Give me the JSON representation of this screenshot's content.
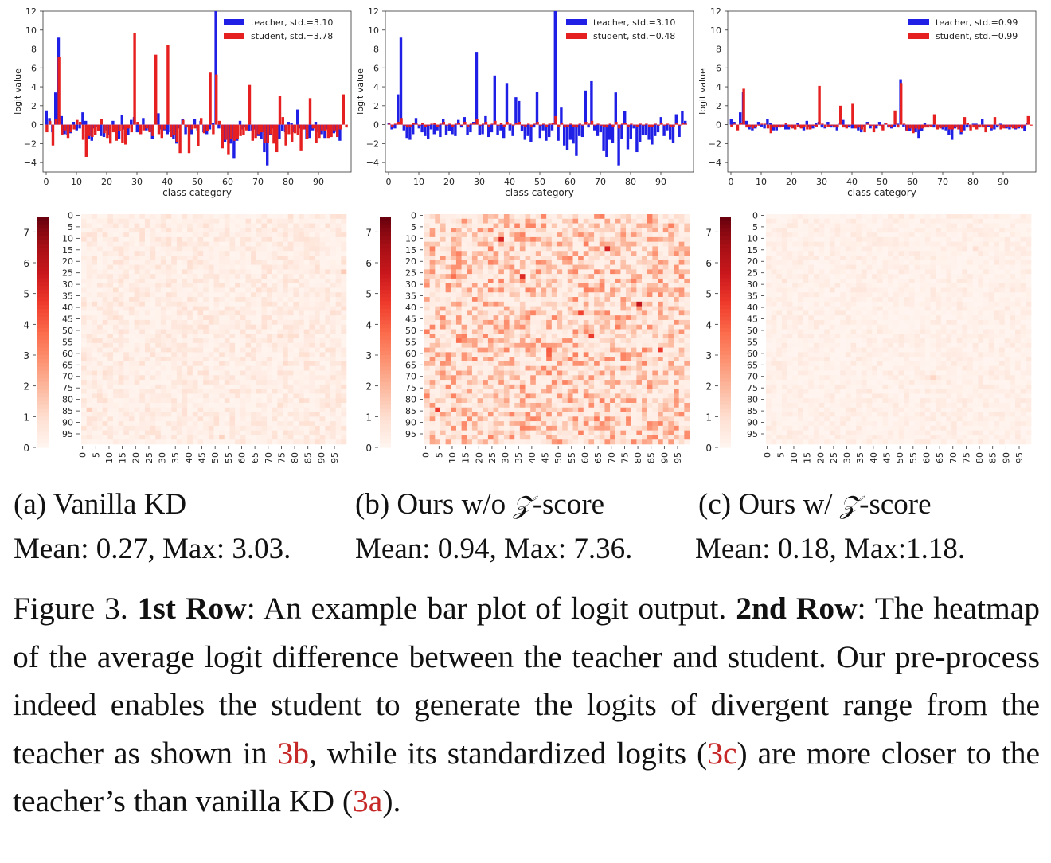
{
  "panels": [
    {
      "id": "a",
      "subcaption": {
        "prefix": "(a) Vanilla KD",
        "z": "",
        "suffix": ""
      },
      "stats": "Mean: 0.27, Max: 3.03.",
      "seed": 11,
      "heat_scale": 1.0
    },
    {
      "id": "b",
      "subcaption": {
        "prefix": "(b) Ours w/o ",
        "z": "𝒵",
        "suffix": "-score"
      },
      "stats": "Mean: 0.94, Max: 7.36.",
      "seed": 23,
      "heat_scale": 3.4
    },
    {
      "id": "c",
      "subcaption": {
        "prefix": "(c) Ours w/ ",
        "z": "𝒵",
        "suffix": "-score"
      },
      "stats": "Mean: 0.18, Max:1.18.",
      "seed": 37,
      "heat_scale": 0.65
    }
  ],
  "chart_data": [
    {
      "type": "bar",
      "panel": "a",
      "xlabel": "class category",
      "ylabel": "logit value",
      "xlim": [
        0,
        99
      ],
      "ylim": [
        -5,
        12
      ],
      "xticks": [
        0,
        10,
        20,
        30,
        40,
        50,
        60,
        70,
        80,
        90
      ],
      "yticks": [
        -4,
        -2,
        0,
        2,
        4,
        6,
        8,
        10,
        12
      ],
      "legend_position": "top-right",
      "series": [
        {
          "name": "teacher, std.=3.10",
          "color": "#1f1fe6",
          "values": [
            1.5,
            0.7,
            -0.8,
            3.4,
            9.2,
            0.9,
            -1.0,
            -1.1,
            -0.9,
            0.3,
            -0.6,
            -0.4,
            1.3,
            0.4,
            -1.5,
            -1.7,
            -0.4,
            -0.2,
            -1.2,
            -1.3,
            -0.6,
            -1.1,
            0.4,
            -0.6,
            -1.5,
            1.0,
            -0.5,
            -1.1,
            0.5,
            0.8,
            -0.8,
            -1.0,
            0.7,
            -0.6,
            -0.6,
            -1.5,
            0.3,
            1.2,
            -0.5,
            -0.6,
            -1.0,
            -0.8,
            -1.5,
            -2.0,
            -0.4,
            0.6,
            -1.0,
            -0.2,
            -1.0,
            0.6,
            -0.6,
            0.4,
            -0.8,
            -1.0,
            -0.5,
            0.2,
            12.0,
            -0.4,
            -1.5,
            -1.8,
            -1.6,
            -2.0,
            -3.6,
            -1.7,
            0.4,
            -0.5,
            -0.3,
            -0.7,
            -0.6,
            -0.5,
            -1.2,
            -1.5,
            -2.9,
            -4.3,
            -1.1,
            -0.4,
            -2.6,
            -1.5,
            -0.7,
            -0.8,
            0.3,
            0.2,
            -0.8,
            1.6,
            -0.4,
            -0.5,
            -1.5,
            -1.4,
            -0.6,
            0.3,
            -0.8,
            -1.0,
            -1.4,
            -0.5,
            -1.3,
            -0.9,
            -0.8,
            -1.7,
            0.5
          ],
          "note": "values read approximately from the plot"
        },
        {
          "name": "student, std.=3.78",
          "color": "#e62020",
          "values": [
            -0.8,
            0.4,
            -2.2,
            0.6,
            7.2,
            -1.1,
            -0.6,
            -1.4,
            -0.8,
            -0.5,
            0.5,
            0.3,
            -1.6,
            -3.4,
            -1.2,
            -1.3,
            -1.1,
            -0.7,
            0.6,
            -0.9,
            -1.4,
            -2.0,
            -0.8,
            -1.7,
            -0.7,
            -1.9,
            -2.1,
            -0.4,
            -0.8,
            9.7,
            0.3,
            -1.0,
            -0.6,
            -0.4,
            -0.8,
            -1.2,
            7.4,
            -1.0,
            -1.4,
            -0.5,
            8.4,
            -1.3,
            -1.1,
            -1.8,
            -3.0,
            0.5,
            -0.3,
            -3.0,
            -0.5,
            -0.4,
            -2.3,
            0.7,
            -0.9,
            -0.7,
            5.5,
            -1.0,
            5.3,
            0.4,
            -2.5,
            -1.6,
            -3.2,
            -1.5,
            -1.7,
            -1.5,
            -1.2,
            -1.1,
            -0.6,
            4.2,
            -1.7,
            -1.4,
            -1.0,
            -0.8,
            -1.9,
            -1.9,
            -1.0,
            -2.0,
            -2.9,
            3.0,
            0.8,
            -2.2,
            -1.0,
            -1.8,
            -0.9,
            -1.1,
            -2.8,
            -0.5,
            -1.5,
            2.8,
            -0.4,
            -1.9,
            -1.4,
            -0.6,
            -0.7,
            -1.4,
            -1.3,
            -0.6,
            -1.3,
            -0.5,
            3.2,
            -0.3
          ],
          "note": "values read approximately from the plot"
        }
      ]
    },
    {
      "type": "bar",
      "panel": "b",
      "xlabel": "class category",
      "ylabel": "logit value",
      "xlim": [
        0,
        99
      ],
      "ylim": [
        -5,
        12
      ],
      "xticks": [
        0,
        10,
        20,
        30,
        40,
        50,
        60,
        70,
        80,
        90
      ],
      "yticks": [
        -4,
        -2,
        0,
        2,
        4,
        6,
        8,
        10,
        12
      ],
      "legend_position": "top-right",
      "series": [
        {
          "name": "teacher, std.=3.10",
          "color": "#1f1fe6",
          "values": [
            0.2,
            -0.5,
            -0.4,
            3.2,
            9.2,
            -0.6,
            -1.4,
            -1.6,
            -1.0,
            0.7,
            -0.4,
            -0.8,
            -1.2,
            -1.5,
            -0.5,
            -1.0,
            -0.6,
            -1.3,
            0.6,
            -1.1,
            -0.7,
            -1.0,
            -1.2,
            0.5,
            -0.3,
            0.8,
            -1.1,
            -0.8,
            0.3,
            7.7,
            -1.1,
            -1.0,
            0.9,
            -1.3,
            -0.8,
            5.2,
            -1.1,
            -0.6,
            -1.4,
            4.4,
            -0.6,
            -1.2,
            2.9,
            2.5,
            -0.7,
            -1.6,
            -1.2,
            -1.8,
            -0.3,
            3.5,
            -1.4,
            -0.6,
            -1.7,
            -1.3,
            -0.6,
            12.0,
            -1.7,
            1.8,
            -2.2,
            -2.7,
            -1.6,
            -2.0,
            -3.3,
            -1.2,
            -1.3,
            3.6,
            -0.3,
            4.6,
            -0.6,
            -1.2,
            -0.8,
            -2.8,
            -3.4,
            -1.6,
            -1.9,
            3.4,
            -4.3,
            -1.5,
            1.4,
            -2.6,
            -1.5,
            -0.4,
            -2.9,
            -1.8,
            -1.1,
            -1.1,
            -1.6,
            -2.1,
            -1.2,
            -0.8,
            0.8,
            -1.2,
            -0.6,
            -1.6,
            -1.9,
            1.1,
            -1.3,
            1.4,
            0.4
          ],
          "note": "values read approximately from the plot"
        },
        {
          "name": "student, std.=0.48",
          "color": "#e62020",
          "values": [
            0.1,
            -0.2,
            0.1,
            0.3,
            0.7,
            -0.1,
            -0.3,
            -0.2,
            0.2,
            0.1,
            -0.1,
            0.2,
            -0.2,
            -0.1,
            0.1,
            0.2,
            -0.2,
            0.1,
            0.3,
            -0.1,
            0.1,
            -0.2,
            0.1,
            0.2,
            -0.1,
            0.3,
            -0.2,
            0.1,
            0.2,
            0.6,
            -0.1,
            0.1,
            0.3,
            -0.2,
            0.1,
            0.4,
            -0.1,
            0.2,
            -0.2,
            0.3,
            0.1,
            -0.1,
            0.2,
            0.3,
            -0.1,
            -0.2,
            0.1,
            -0.2,
            0.1,
            0.3,
            -0.1,
            0.1,
            -0.2,
            0.1,
            0.2,
            0.9,
            -0.2,
            0.2,
            -0.3,
            -0.2,
            0.1,
            -0.2,
            -0.3,
            0.1,
            -0.1,
            0.3,
            0.1,
            0.4,
            -0.1,
            0.1,
            -0.1,
            -0.2,
            -0.3,
            0.1,
            -0.2,
            0.3,
            -0.4,
            0.1,
            0.2,
            -0.2,
            0.1,
            -0.1,
            -0.2,
            0.1,
            -0.1,
            0.1,
            -0.2,
            -0.2,
            0.1,
            -0.1,
            0.2,
            -0.1,
            0.1,
            -0.2,
            -0.2,
            0.2,
            -0.1,
            0.2,
            0.1
          ],
          "note": "values read approximately from the plot"
        }
      ]
    },
    {
      "type": "bar",
      "panel": "c",
      "xlabel": "class category",
      "ylabel": "logit value",
      "xlim": [
        0,
        99
      ],
      "ylim": [
        -5,
        12
      ],
      "xticks": [
        0,
        10,
        20,
        30,
        40,
        50,
        60,
        70,
        80,
        90
      ],
      "yticks": [
        -4,
        -2,
        0,
        2,
        4,
        6,
        8,
        10,
        12
      ],
      "legend_position": "top-right",
      "series": [
        {
          "name": "teacher, std.=0.99",
          "color": "#1f1fe6",
          "values": [
            0.6,
            0.3,
            -0.3,
            1.3,
            3.5,
            0.4,
            -0.5,
            -0.6,
            -0.4,
            0.3,
            -0.2,
            -0.4,
            0.6,
            0.2,
            -0.6,
            -0.6,
            -0.2,
            -0.2,
            -0.5,
            -0.5,
            -0.3,
            -0.4,
            0.2,
            -0.3,
            -0.6,
            0.4,
            -0.2,
            -0.4,
            0.2,
            0.3,
            -0.3,
            -0.4,
            0.3,
            -0.3,
            -0.3,
            -0.6,
            0.1,
            0.5,
            -0.2,
            -0.3,
            -0.4,
            -0.3,
            -0.6,
            -0.8,
            -0.2,
            0.3,
            -0.4,
            -0.1,
            -0.4,
            0.3,
            -0.3,
            0.2,
            -0.3,
            -0.4,
            -0.2,
            0.1,
            4.8,
            -0.2,
            -0.6,
            -0.7,
            -0.6,
            -0.8,
            -1.4,
            -0.7,
            0.2,
            -0.2,
            -0.1,
            -0.3,
            -0.3,
            -0.2,
            -0.5,
            -0.6,
            -1.1,
            -1.6,
            -0.4,
            -0.2,
            -1.0,
            -0.6,
            -0.3,
            -0.3,
            0.1,
            0.1,
            -0.3,
            0.6,
            -0.2,
            -0.2,
            -0.6,
            -0.5,
            -0.3,
            0.1,
            -0.3,
            -0.4,
            -0.5,
            -0.2,
            -0.5,
            -0.4,
            -0.3,
            -0.7,
            0.2
          ],
          "note": "values read approximately from the plot"
        },
        {
          "name": "student, std.=0.99",
          "color": "#e62020",
          "values": [
            -0.2,
            0.1,
            -0.6,
            0.2,
            3.8,
            -0.3,
            -0.2,
            -0.4,
            -0.2,
            -0.1,
            0.1,
            0.1,
            -0.4,
            -0.9,
            -0.3,
            -0.3,
            -0.3,
            -0.2,
            0.2,
            -0.2,
            -0.4,
            -0.5,
            -0.2,
            -0.4,
            -0.2,
            -0.5,
            -0.5,
            -0.1,
            -0.2,
            4.1,
            0.1,
            -0.3,
            -0.2,
            -0.1,
            -0.2,
            -0.3,
            2.0,
            -0.3,
            -0.4,
            -0.1,
            2.2,
            -0.4,
            -0.3,
            -0.5,
            -0.8,
            0.1,
            -0.1,
            -0.8,
            -0.1,
            -0.1,
            -0.6,
            0.2,
            -0.2,
            -0.2,
            1.5,
            -0.3,
            4.4,
            0.1,
            -0.7,
            -0.4,
            -0.9,
            -0.4,
            -0.5,
            -0.4,
            -0.3,
            -0.3,
            -0.2,
            1.1,
            -0.5,
            -0.4,
            -0.3,
            -0.2,
            -0.5,
            -0.5,
            -0.3,
            -0.5,
            -0.8,
            0.8,
            0.2,
            -0.6,
            -0.3,
            -0.5,
            -0.2,
            -0.3,
            -0.8,
            -0.1,
            -0.4,
            0.8,
            -0.1,
            -0.5,
            -0.4,
            -0.2,
            -0.2,
            -0.4,
            -0.4,
            -0.2,
            -0.4,
            -0.1,
            0.9,
            -0.1
          ],
          "note": "values read approximately from the plot"
        }
      ]
    },
    {
      "type": "heatmap",
      "panel": "a",
      "rows": 100,
      "cols": 100,
      "row_ticks": [
        0,
        5,
        10,
        15,
        20,
        25,
        30,
        35,
        40,
        45,
        50,
        55,
        60,
        65,
        70,
        75,
        80,
        85,
        90,
        95
      ],
      "col_ticks": [
        0,
        5,
        10,
        15,
        20,
        25,
        30,
        35,
        40,
        45,
        50,
        55,
        60,
        65,
        70,
        75,
        80,
        85,
        90,
        95
      ],
      "colorbar_ticks": [
        0,
        1,
        2,
        3,
        4,
        5,
        6,
        7
      ],
      "vmin": 0,
      "vmax": 7.5,
      "mean": 0.27,
      "max": 3.03,
      "colormap": "Reds"
    },
    {
      "type": "heatmap",
      "panel": "b",
      "rows": 100,
      "cols": 100,
      "row_ticks": [
        0,
        5,
        10,
        15,
        20,
        25,
        30,
        35,
        40,
        45,
        50,
        55,
        60,
        65,
        70,
        75,
        80,
        85,
        90,
        95
      ],
      "col_ticks": [
        0,
        5,
        10,
        15,
        20,
        25,
        30,
        35,
        40,
        45,
        50,
        55,
        60,
        65,
        70,
        75,
        80,
        85,
        90,
        95
      ],
      "colorbar_ticks": [
        0,
        1,
        2,
        3,
        4,
        5,
        6,
        7
      ],
      "vmin": 0,
      "vmax": 7.5,
      "mean": 0.94,
      "max": 7.36,
      "colormap": "Reds"
    },
    {
      "type": "heatmap",
      "panel": "c",
      "rows": 100,
      "cols": 100,
      "row_ticks": [
        0,
        5,
        10,
        15,
        20,
        25,
        30,
        35,
        40,
        45,
        50,
        55,
        60,
        65,
        70,
        75,
        80,
        85,
        90,
        95
      ],
      "col_ticks": [
        0,
        5,
        10,
        15,
        20,
        25,
        30,
        35,
        40,
        45,
        50,
        55,
        60,
        65,
        70,
        75,
        80,
        85,
        90,
        95
      ],
      "colorbar_ticks": [
        0,
        1,
        2,
        3,
        4,
        5,
        6,
        7
      ],
      "vmin": 0,
      "vmax": 7.5,
      "mean": 0.18,
      "max": 1.18,
      "colormap": "Reds"
    }
  ],
  "caption": {
    "figure_label": "Figure 3. ",
    "row1_label": "1st Row",
    "row1_text": ": An example bar plot of logit output. ",
    "row2_label": "2nd Row",
    "row2_text_1": ": The heatmap of the average logit difference between the teacher and student. Our pre-process indeed enables the student to generate the logits of divergent range from the teacher as shown in ",
    "ref_b": "3b",
    "row2_text_2": ", while its standardized logits (",
    "ref_c": "3c",
    "row2_text_3": ") are more closer to the teacher’s than vanilla KD (",
    "ref_a": "3a",
    "row2_text_4": ")."
  }
}
